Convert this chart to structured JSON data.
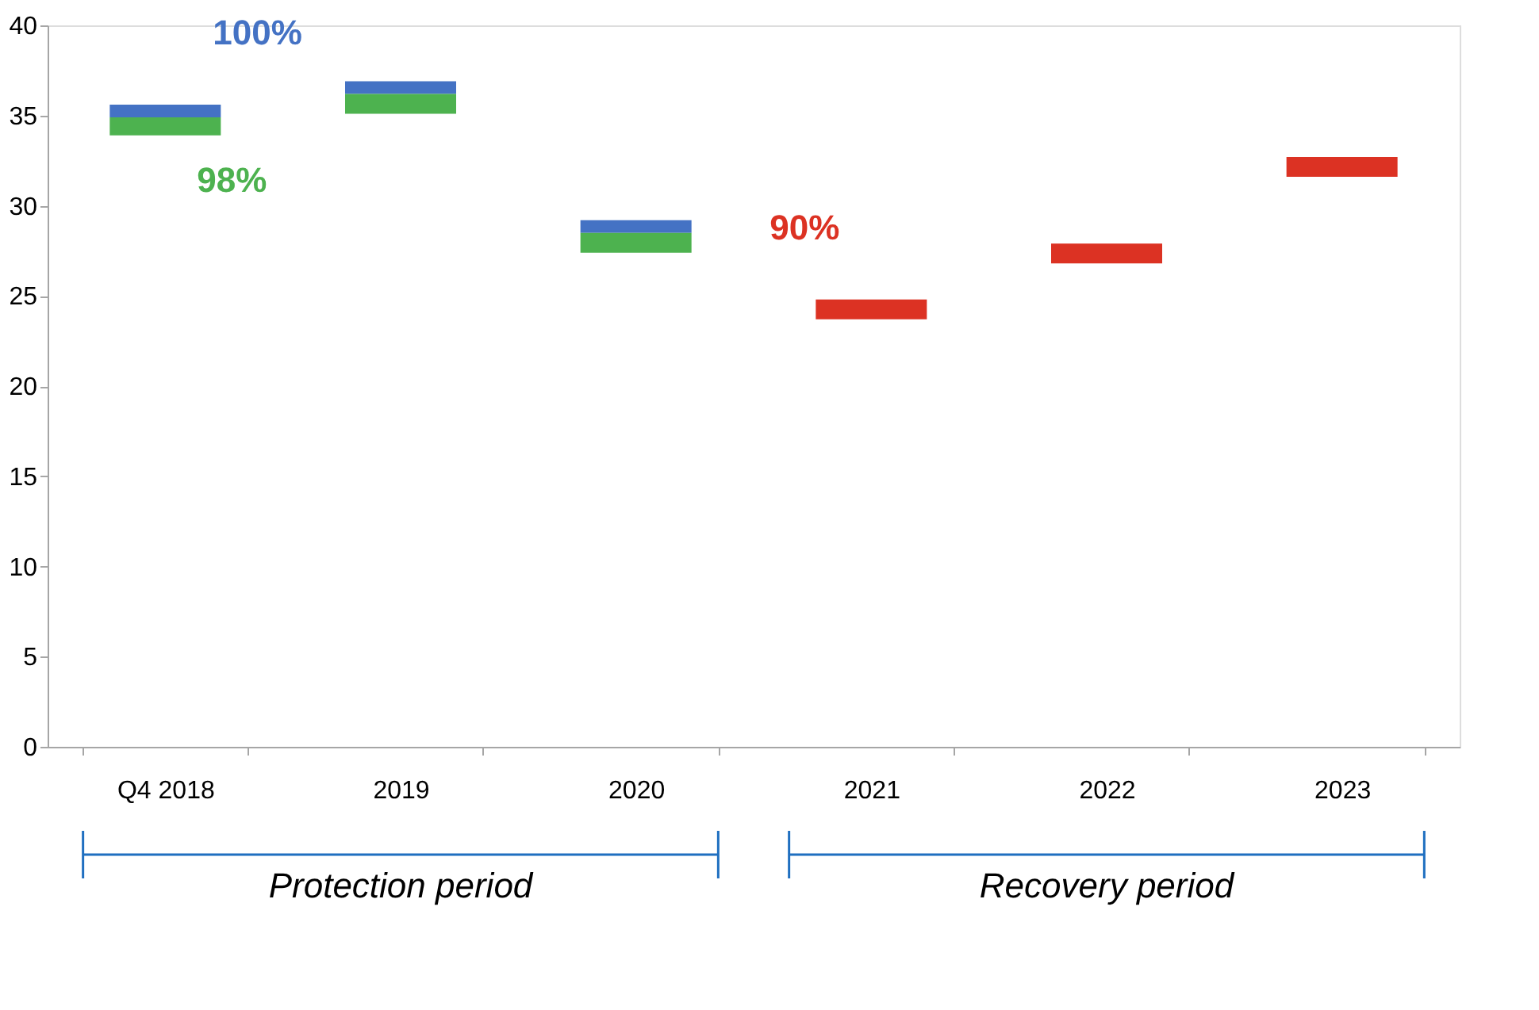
{
  "chart_data": {
    "type": "bar",
    "categories": [
      "Q4 2018",
      "2019",
      "2020",
      "2021",
      "2022",
      "2023"
    ],
    "series": [
      {
        "name": "100%",
        "color": "#4472c4",
        "base": [
          34.9,
          36.2,
          28.5,
          null,
          null,
          null
        ],
        "values": [
          0.7,
          0.7,
          0.7,
          null,
          null,
          null
        ]
      },
      {
        "name": "98%",
        "color": "#4db24f",
        "base": [
          33.9,
          35.1,
          27.4,
          null,
          null,
          null
        ],
        "values": [
          1.0,
          1.1,
          1.1,
          null,
          null,
          null
        ]
      },
      {
        "name": "90%",
        "color": "#dc3223",
        "base": [
          null,
          null,
          null,
          23.7,
          26.8,
          31.6
        ],
        "values": [
          null,
          null,
          null,
          1.1,
          1.1,
          1.1
        ]
      }
    ],
    "ylim": [
      0,
      40
    ],
    "yticks": [
      0,
      5,
      10,
      15,
      20,
      25,
      30,
      35,
      40
    ],
    "grid": false,
    "legend": false,
    "annotations": [
      "Protection period",
      "Recovery period"
    ]
  }
}
